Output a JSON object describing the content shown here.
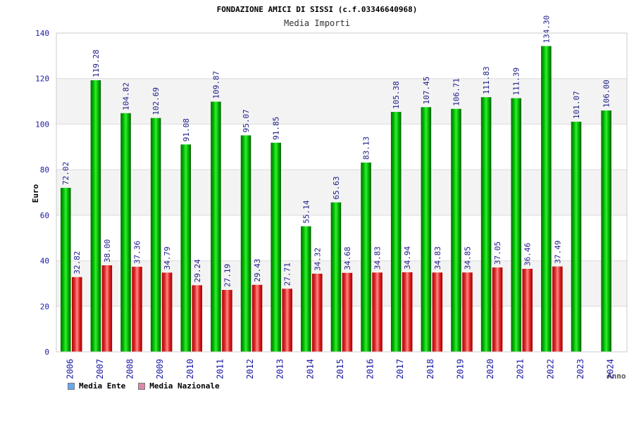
{
  "chart_data": {
    "type": "bar",
    "title": "FONDAZIONE AMICI DI SISSI (c.f.03346640968)",
    "subtitle": "Media Importi",
    "xlabel": "Anno",
    "ylabel": "Euro",
    "ylim": [
      0,
      140
    ],
    "yticks": [
      0,
      20,
      40,
      60,
      80,
      100,
      120,
      140
    ],
    "categories": [
      "2006",
      "2007",
      "2008",
      "2009",
      "2010",
      "2011",
      "2012",
      "2013",
      "2014",
      "2015",
      "2016",
      "2017",
      "2018",
      "2019",
      "2020",
      "2021",
      "2022",
      "2023",
      "2024"
    ],
    "series": [
      {
        "name": "Media Ente",
        "color": "#00aa00",
        "values": [
          72.02,
          119.28,
          104.82,
          102.69,
          91.08,
          109.87,
          95.07,
          91.85,
          55.14,
          65.63,
          83.13,
          105.38,
          107.45,
          106.71,
          111.83,
          111.39,
          134.3,
          101.07,
          106.0
        ],
        "labels": [
          "72.02",
          "119.28",
          "104.82",
          "102.69",
          "91.08",
          "109.87",
          "95.07",
          "91.85",
          "55.14",
          "65.63",
          "83.13",
          "105.38",
          "107.45",
          "106.71",
          "111.83",
          "111.39",
          "134.30",
          "101.07",
          "106.00"
        ]
      },
      {
        "name": "Media Nazionale",
        "color": "#dd3333",
        "values": [
          32.82,
          38.0,
          37.36,
          34.79,
          29.24,
          27.19,
          29.43,
          27.71,
          34.32,
          34.68,
          34.83,
          34.94,
          34.83,
          34.85,
          37.05,
          36.46,
          37.49,
          null,
          null
        ],
        "labels": [
          "32.82",
          "38.00",
          "37.36",
          "34.79",
          "29.24",
          "27.19",
          "29.43",
          "27.71",
          "34.32",
          "34.68",
          "34.83",
          "34.94",
          "34.83",
          "34.85",
          "37.05",
          "36.46",
          "37.49",
          null,
          null
        ]
      }
    ],
    "legend": [
      {
        "name": "Media Ente",
        "color": "#66aaee"
      },
      {
        "name": "Media Nazionale",
        "color": "#dd88aa"
      }
    ],
    "grid": true,
    "legend_position": "bottom-left"
  }
}
